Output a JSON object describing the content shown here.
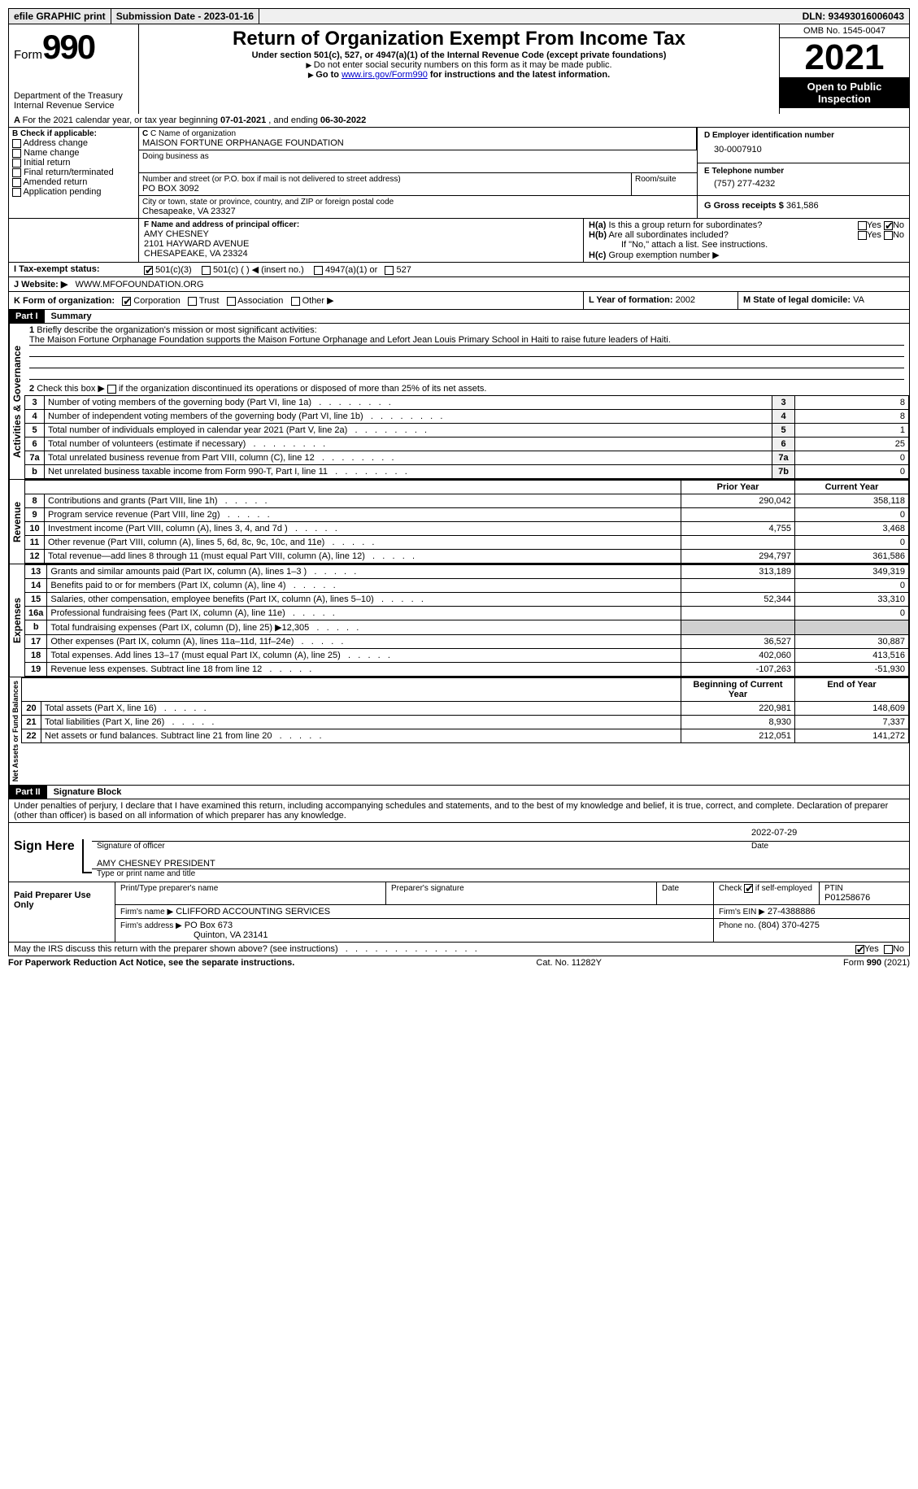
{
  "topbar": {
    "efile": "efile GRAPHIC print",
    "submission": "Submission Date - 2023-01-16",
    "dln": "DLN: 93493016006043"
  },
  "header": {
    "form_label": "Form",
    "form_num": "990",
    "title": "Return of Organization Exempt From Income Tax",
    "subtitle": "Under section 501(c), 527, or 4947(a)(1) of the Internal Revenue Code (except private foundations)",
    "instr1": "Do not enter social security numbers on this form as it may be made public.",
    "instr2_pre": "Go to ",
    "instr2_link": "www.irs.gov/Form990",
    "instr2_post": " for instructions and the latest information.",
    "dept": "Department of the Treasury",
    "irs": "Internal Revenue Service",
    "omb": "OMB No. 1545-0047",
    "year": "2021",
    "inspection": "Open to Public Inspection"
  },
  "lineA": {
    "text_pre": "For the 2021 calendar year, or tax year beginning ",
    "begin": "07-01-2021",
    "mid": " , and ending ",
    "end": "06-30-2022"
  },
  "boxB": {
    "label": "B Check if applicable:",
    "opts": [
      "Address change",
      "Name change",
      "Initial return",
      "Final return/terminated",
      "Amended return",
      "Application pending"
    ]
  },
  "boxC": {
    "label": "C Name of organization",
    "name": "MAISON FORTUNE ORPHANAGE FOUNDATION",
    "dba_label": "Doing business as",
    "addr_label": "Number and street (or P.O. box if mail is not delivered to street address)",
    "room_label": "Room/suite",
    "addr": "PO BOX 3092",
    "city_label": "City or town, state or province, country, and ZIP or foreign postal code",
    "city": "Chesapeake, VA  23327"
  },
  "boxD": {
    "label": "D Employer identification number",
    "value": "30-0007910"
  },
  "boxE": {
    "label": "E Telephone number",
    "value": "(757) 277-4232"
  },
  "boxG": {
    "label": "G Gross receipts $",
    "value": "361,586"
  },
  "boxF": {
    "label": "F  Name and address of principal officer:",
    "name": "AMY CHESNEY",
    "addr1": "2101 HAYWARD AVENUE",
    "addr2": "CHESAPEAKE, VA  23324"
  },
  "boxH": {
    "a_label": "H(a)  Is this a group return for subordinates?",
    "b_label": "H(b)  Are all subordinates included?",
    "b_note": "If \"No,\" attach a list. See instructions.",
    "c_label": "H(c)  Group exemption number ▶",
    "yes": "Yes",
    "no": "No"
  },
  "lineI": {
    "label": "I     Tax-exempt status:",
    "opts": [
      "501(c)(3)",
      "501(c) (  ) ◀ (insert no.)",
      "4947(a)(1) or",
      "527"
    ]
  },
  "lineJ": {
    "label": "J    Website: ▶",
    "value": "WWW.MFOFOUNDATION.ORG"
  },
  "lineK": {
    "label": "K Form of organization:",
    "opts": [
      "Corporation",
      "Trust",
      "Association",
      "Other ▶"
    ]
  },
  "lineL": {
    "label": "L Year of formation:",
    "value": "2002"
  },
  "lineM": {
    "label": "M State of legal domicile:",
    "value": "VA"
  },
  "part1": {
    "label": "Part I",
    "title": "Summary",
    "q1_label": "Briefly describe the organization's mission or most significant activities:",
    "q1_text": "The Maison Fortune Orphanage Foundation supports the Maison Fortune Orphanage and Lefort Jean Louis Primary School in Haiti to raise future leaders of Haiti.",
    "q2": "Check this box ▶        if the organization discontinued its operations or disposed of more than 25% of its net assets.",
    "sections": {
      "ag": "Activities & Governance",
      "rev": "Revenue",
      "exp": "Expenses",
      "net": "Net Assets or Fund Balances"
    },
    "gov_rows": [
      {
        "n": "3",
        "t": "Number of voting members of the governing body (Part VI, line 1a)",
        "box": "3",
        "v": "8"
      },
      {
        "n": "4",
        "t": "Number of independent voting members of the governing body (Part VI, line 1b)",
        "box": "4",
        "v": "8"
      },
      {
        "n": "5",
        "t": "Total number of individuals employed in calendar year 2021 (Part V, line 2a)",
        "box": "5",
        "v": "1"
      },
      {
        "n": "6",
        "t": "Total number of volunteers (estimate if necessary)",
        "box": "6",
        "v": "25"
      },
      {
        "n": "7a",
        "t": "Total unrelated business revenue from Part VIII, column (C), line 12",
        "box": "7a",
        "v": "0"
      },
      {
        "n": "b",
        "t": "Net unrelated business taxable income from Form 990-T, Part I, line 11",
        "box": "7b",
        "v": "0"
      }
    ],
    "col_prior": "Prior Year",
    "col_current": "Current Year",
    "col_boy": "Beginning of Current Year",
    "col_eoy": "End of Year",
    "rev_rows": [
      {
        "n": "8",
        "t": "Contributions and grants (Part VIII, line 1h)",
        "p": "290,042",
        "c": "358,118"
      },
      {
        "n": "9",
        "t": "Program service revenue (Part VIII, line 2g)",
        "p": "",
        "c": "0"
      },
      {
        "n": "10",
        "t": "Investment income (Part VIII, column (A), lines 3, 4, and 7d )",
        "p": "4,755",
        "c": "3,468"
      },
      {
        "n": "11",
        "t": "Other revenue (Part VIII, column (A), lines 5, 6d, 8c, 9c, 10c, and 11e)",
        "p": "",
        "c": "0"
      },
      {
        "n": "12",
        "t": "Total revenue—add lines 8 through 11 (must equal Part VIII, column (A), line 12)",
        "p": "294,797",
        "c": "361,586"
      }
    ],
    "exp_rows": [
      {
        "n": "13",
        "t": "Grants and similar amounts paid (Part IX, column (A), lines 1–3 )",
        "p": "313,189",
        "c": "349,319"
      },
      {
        "n": "14",
        "t": "Benefits paid to or for members (Part IX, column (A), line 4)",
        "p": "",
        "c": "0"
      },
      {
        "n": "15",
        "t": "Salaries, other compensation, employee benefits (Part IX, column (A), lines 5–10)",
        "p": "52,344",
        "c": "33,310"
      },
      {
        "n": "16a",
        "t": "Professional fundraising fees (Part IX, column (A), line 11e)",
        "p": "",
        "c": "0"
      },
      {
        "n": "b",
        "t": "Total fundraising expenses (Part IX, column (D), line 25) ▶12,305",
        "p": "GRAY",
        "c": "GRAY"
      },
      {
        "n": "17",
        "t": "Other expenses (Part IX, column (A), lines 11a–11d, 11f–24e)",
        "p": "36,527",
        "c": "30,887"
      },
      {
        "n": "18",
        "t": "Total expenses. Add lines 13–17 (must equal Part IX, column (A), line 25)",
        "p": "402,060",
        "c": "413,516"
      },
      {
        "n": "19",
        "t": "Revenue less expenses. Subtract line 18 from line 12",
        "p": "-107,263",
        "c": "-51,930"
      }
    ],
    "net_rows": [
      {
        "n": "20",
        "t": "Total assets (Part X, line 16)",
        "p": "220,981",
        "c": "148,609"
      },
      {
        "n": "21",
        "t": "Total liabilities (Part X, line 26)",
        "p": "8,930",
        "c": "7,337"
      },
      {
        "n": "22",
        "t": "Net assets or fund balances. Subtract line 21 from line 20",
        "p": "212,051",
        "c": "141,272"
      }
    ]
  },
  "part2": {
    "label": "Part II",
    "title": "Signature Block",
    "penalty": "Under penalties of perjury, I declare that I have examined this return, including accompanying schedules and statements, and to the best of my knowledge and belief, it is true, correct, and complete. Declaration of preparer (other than officer) is based on all information of which preparer has any knowledge.",
    "sign_here": "Sign Here",
    "sig_officer": "Signature of officer",
    "sig_date": "2022-07-29",
    "date_label": "Date",
    "name_title": "AMY CHESNEY PRESIDENT",
    "type_name": "Type or print name and title",
    "paid_label": "Paid Preparer Use Only",
    "prep_name_label": "Print/Type preparer's name",
    "prep_sig_label": "Preparer's signature",
    "check_self": "Check         if self-employed",
    "ptin_label": "PTIN",
    "ptin": "P01258676",
    "firm_name_label": "Firm's name      ▶",
    "firm_name": "CLIFFORD ACCOUNTING SERVICES",
    "firm_ein_label": "Firm's EIN ▶",
    "firm_ein": "27-4388886",
    "firm_addr_label": "Firm's address ▶",
    "firm_addr1": "PO Box 673",
    "firm_addr2": "Quinton, VA  23141",
    "firm_phone_label": "Phone no.",
    "firm_phone": "(804) 370-4275",
    "discuss": "May the IRS discuss this return with the preparer shown above? (see instructions)"
  },
  "footer": {
    "paperwork": "For Paperwork Reduction Act Notice, see the separate instructions.",
    "cat": "Cat. No. 11282Y",
    "form": "Form 990 (2021)"
  }
}
